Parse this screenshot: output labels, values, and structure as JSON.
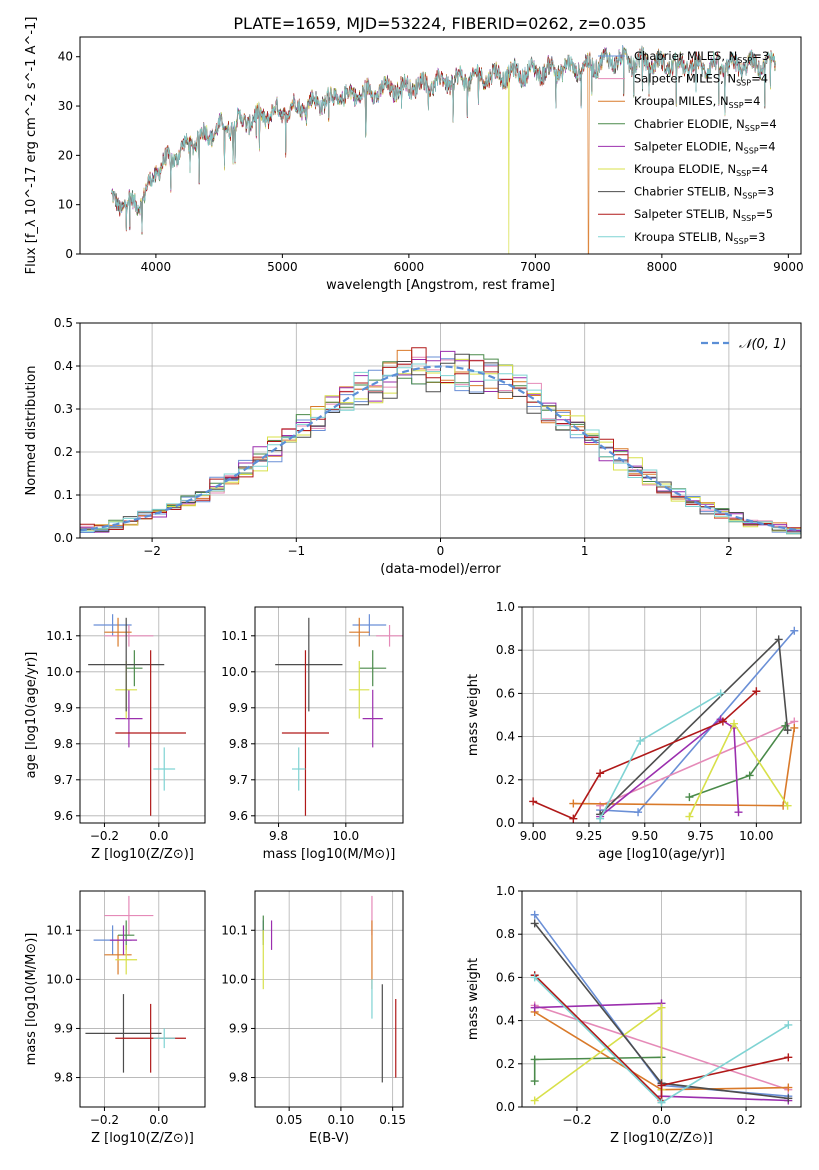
{
  "figure_title": "PLATE=1659, MJD=53224, FIBERID=0262, z=0.035",
  "colors": {
    "Chabrier MILES": "#6a8fd6",
    "Salpeter MILES": "#e58ab8",
    "Kroupa MILES": "#d97a2a",
    "Chabrier ELODIE": "#4a8a4a",
    "Salpeter ELODIE": "#9b2fae",
    "Kroupa ELODIE": "#d8e04a",
    "Chabrier STELIB": "#4d4d4d",
    "Salpeter STELIB": "#b01919",
    "Kroupa STELIB": "#7fd3d3",
    "normal": "#5b8fd6"
  },
  "chart_data": [
    {
      "id": "spectrum",
      "type": "line",
      "xlabel": "wavelength [Angstrom, rest frame]",
      "ylabel": "Flux [f_λ 10^-17 erg cm^-2 s^-1 A^-1]",
      "xlim": [
        3400,
        9100
      ],
      "ylim": [
        0,
        44
      ],
      "xticks": [
        4000,
        5000,
        6000,
        7000,
        8000,
        9000
      ],
      "yticks": [
        0,
        10,
        20,
        30,
        40
      ],
      "grid": false,
      "legend_position": "right",
      "legend": [
        {
          "model": "Chabrier MILES",
          "nssp": "3"
        },
        {
          "model": "Salpeter MILES",
          "nssp": "4"
        },
        {
          "model": "Kroupa MILES",
          "nssp": "4"
        },
        {
          "model": "Chabrier ELODIE",
          "nssp": "4"
        },
        {
          "model": "Salpeter ELODIE",
          "nssp": "4"
        },
        {
          "model": "Kroupa ELODIE",
          "nssp": "4"
        },
        {
          "model": "Chabrier STELIB",
          "nssp": "3"
        },
        {
          "model": "Salpeter STELIB",
          "nssp": "5"
        },
        {
          "model": "Kroupa STELIB",
          "nssp": "3"
        }
      ],
      "continuum": {
        "x": [
          3650,
          3750,
          3900,
          4000,
          4100,
          4300,
          4500,
          4700,
          5000,
          5300,
          5600,
          6000,
          6300,
          6600,
          7000,
          7400,
          7600,
          8000,
          8500,
          8900
        ],
        "y": [
          11,
          10,
          11,
          17,
          19,
          23,
          25.5,
          27,
          29,
          31,
          32.5,
          34,
          35,
          36,
          37,
          38,
          39.5,
          38.5,
          38,
          38.5
        ]
      },
      "dropouts": [
        {
          "model": "Kroupa MILES",
          "wavelength": 7420
        },
        {
          "model": "Kroupa ELODIE",
          "wavelength": 6790
        }
      ]
    },
    {
      "id": "residuals",
      "type": "line",
      "xlabel": "(data-model)/error",
      "ylabel": "Normed distribution",
      "xlim": [
        -2.5,
        2.5
      ],
      "ylim": [
        0,
        0.5
      ],
      "xticks": [
        -2,
        -1,
        0,
        1,
        2
      ],
      "yticks": [
        0.0,
        0.1,
        0.2,
        0.3,
        0.4,
        0.5
      ],
      "grid": true,
      "legend_position": "top-right",
      "series": [
        {
          "name": "N(0,1)",
          "label_script": "𝒩(0, 1)",
          "mean": 0,
          "std": 1
        }
      ],
      "histogram": {
        "bin_width": 0.1,
        "range": [
          -2.5,
          2.5
        ]
      }
    },
    {
      "id": "age-vs-z",
      "type": "scatter",
      "xlabel": "Z [log10(Z/Z⊙)]",
      "ylabel": "age [log10(age/yr)]",
      "xlim": [
        -0.29,
        0.17
      ],
      "ylim": [
        9.58,
        10.18
      ],
      "xticks": [
        -0.2,
        0.0
      ],
      "yticks": [
        9.6,
        9.7,
        9.8,
        9.9,
        10.0,
        10.1
      ],
      "grid": true,
      "points": [
        {
          "model": "Chabrier MILES",
          "x": -0.17,
          "xerr": 0.07,
          "y": 10.13,
          "yerr": 0.03
        },
        {
          "model": "Salpeter MILES",
          "x": -0.11,
          "xerr": 0.09,
          "y": 10.1,
          "yerr": 0.03
        },
        {
          "model": "Kroupa MILES",
          "x": -0.15,
          "xerr": 0.05,
          "y": 10.11,
          "yerr": 0.04
        },
        {
          "model": "Chabrier ELODIE",
          "x": -0.09,
          "xerr": 0.03,
          "y": 10.01,
          "yerr": 0.05
        },
        {
          "model": "Salpeter ELODIE",
          "x": -0.11,
          "xerr": 0.05,
          "y": 9.87,
          "yerr": 0.08
        },
        {
          "model": "Kroupa ELODIE",
          "x": -0.12,
          "xerr": 0.04,
          "y": 9.95,
          "yerr": 0.08
        },
        {
          "model": "Chabrier STELIB",
          "x": -0.12,
          "xerr": 0.14,
          "y": 10.02,
          "yerr": 0.13
        },
        {
          "model": "Salpeter STELIB",
          "x": -0.03,
          "xerr": 0.13,
          "y": 9.83,
          "yerr": 0.23
        },
        {
          "model": "Kroupa STELIB",
          "x": 0.02,
          "xerr": 0.04,
          "y": 9.73,
          "yerr": 0.06
        }
      ]
    },
    {
      "id": "age-vs-mass",
      "type": "scatter",
      "xlabel": "mass [log10(M/M⊙)]",
      "ylabel": "",
      "xlim": [
        9.73,
        10.17
      ],
      "ylim": [
        9.58,
        10.18
      ],
      "xticks": [
        9.8,
        10.0
      ],
      "yticks": [
        9.6,
        9.7,
        9.8,
        9.9,
        10.0,
        10.1
      ],
      "grid": true,
      "points": [
        {
          "model": "Chabrier MILES",
          "x": 10.07,
          "xerr": 0.05,
          "y": 10.13,
          "yerr": 0.03
        },
        {
          "model": "Salpeter MILES",
          "x": 10.13,
          "xerr": 0.04,
          "y": 10.1,
          "yerr": 0.03
        },
        {
          "model": "Kroupa MILES",
          "x": 10.04,
          "xerr": 0.03,
          "y": 10.11,
          "yerr": 0.04
        },
        {
          "model": "Chabrier ELODIE",
          "x": 10.08,
          "xerr": 0.04,
          "y": 10.01,
          "yerr": 0.05
        },
        {
          "model": "Salpeter ELODIE",
          "x": 10.08,
          "xerr": 0.03,
          "y": 9.87,
          "yerr": 0.08
        },
        {
          "model": "Kroupa ELODIE",
          "x": 10.04,
          "xerr": 0.03,
          "y": 9.95,
          "yerr": 0.08
        },
        {
          "model": "Chabrier STELIB",
          "x": 9.89,
          "xerr": 0.1,
          "y": 10.02,
          "yerr": 0.13
        },
        {
          "model": "Salpeter STELIB",
          "x": 9.88,
          "xerr": 0.07,
          "y": 9.83,
          "yerr": 0.23
        },
        {
          "model": "Kroupa STELIB",
          "x": 9.86,
          "xerr": 0.02,
          "y": 9.73,
          "yerr": 0.06
        }
      ]
    },
    {
      "id": "weight-vs-age",
      "type": "line",
      "xlabel": "age [log10(age/yr)]",
      "ylabel": "mass weight",
      "xlim": [
        8.95,
        10.2
      ],
      "ylim": [
        0.0,
        1.0
      ],
      "xticks": [
        9.0,
        9.25,
        9.5,
        9.75,
        10.0
      ],
      "yticks": [
        0.0,
        0.2,
        0.4,
        0.6,
        0.8,
        1.0
      ],
      "grid": true,
      "series": [
        {
          "model": "Chabrier MILES",
          "x": [
            9.3,
            9.47,
            10.17
          ],
          "y": [
            0.06,
            0.05,
            0.89
          ]
        },
        {
          "model": "Salpeter MILES",
          "x": [
            9.3,
            10.17
          ],
          "y": [
            0.08,
            0.47
          ]
        },
        {
          "model": "Kroupa MILES",
          "x": [
            9.18,
            10.12,
            10.17
          ],
          "y": [
            0.09,
            0.08,
            0.44
          ]
        },
        {
          "model": "Chabrier ELODIE",
          "x": [
            9.7,
            9.97,
            10.13
          ],
          "y": [
            0.12,
            0.22,
            0.45
          ]
        },
        {
          "model": "Salpeter ELODIE",
          "x": [
            9.3,
            9.84,
            9.9,
            9.92
          ],
          "y": [
            0.03,
            0.48,
            0.44,
            0.05
          ]
        },
        {
          "model": "Kroupa ELODIE",
          "x": [
            9.7,
            9.9,
            10.14
          ],
          "y": [
            0.03,
            0.46,
            0.08
          ]
        },
        {
          "model": "Chabrier STELIB",
          "x": [
            9.3,
            10.1,
            10.14
          ],
          "y": [
            0.04,
            0.85,
            0.43
          ]
        },
        {
          "model": "Salpeter STELIB",
          "x": [
            9.0,
            9.18,
            9.3,
            9.85,
            10.0
          ],
          "y": [
            0.1,
            0.02,
            0.23,
            0.47,
            0.61
          ]
        },
        {
          "model": "Kroupa STELIB",
          "x": [
            9.3,
            9.48,
            9.84
          ],
          "y": [
            0.02,
            0.38,
            0.6
          ]
        }
      ]
    },
    {
      "id": "mass-vs-z",
      "type": "scatter",
      "xlabel": "Z [log10(Z/Z⊙)]",
      "ylabel": "mass [log10(M/M⊙)]",
      "xlim": [
        -0.29,
        0.17
      ],
      "ylim": [
        9.74,
        10.18
      ],
      "xticks": [
        -0.2,
        0.0
      ],
      "yticks": [
        9.8,
        9.9,
        10.0,
        10.1
      ],
      "grid": true,
      "points": [
        {
          "model": "Chabrier MILES",
          "x": -0.17,
          "xerr": 0.07,
          "y": 10.08,
          "yerr": 0.03
        },
        {
          "model": "Salpeter MILES",
          "x": -0.11,
          "xerr": 0.09,
          "y": 10.13,
          "yerr": 0.04
        },
        {
          "model": "Kroupa MILES",
          "x": -0.15,
          "xerr": 0.05,
          "y": 10.05,
          "yerr": 0.04
        },
        {
          "model": "Chabrier ELODIE",
          "x": -0.12,
          "xerr": 0.03,
          "y": 10.09,
          "yerr": 0.03
        },
        {
          "model": "Salpeter ELODIE",
          "x": -0.13,
          "xerr": 0.05,
          "y": 10.08,
          "yerr": 0.03
        },
        {
          "model": "Kroupa ELODIE",
          "x": -0.12,
          "xerr": 0.04,
          "y": 10.04,
          "yerr": 0.03
        },
        {
          "model": "Chabrier STELIB",
          "x": -0.13,
          "xerr": 0.14,
          "y": 9.89,
          "yerr": 0.08
        },
        {
          "model": "Salpeter STELIB",
          "x": -0.03,
          "xerr": 0.13,
          "y": 9.88,
          "yerr": 0.07
        },
        {
          "model": "Kroupa STELIB",
          "x": 0.02,
          "xerr": 0.04,
          "y": 9.88,
          "yerr": 0.02
        }
      ]
    },
    {
      "id": "mass-vs-ebv",
      "type": "scatter",
      "xlabel": "E(B-V)",
      "ylabel": "",
      "xlim": [
        0.017,
        0.16
      ],
      "ylim": [
        9.74,
        10.18
      ],
      "xticks": [
        0.05,
        0.1,
        0.15
      ],
      "yticks": [
        9.8,
        9.9,
        10.0,
        10.1
      ],
      "grid": true,
      "points": [
        {
          "model": "Chabrier MILES",
          "x": 0.025,
          "xerr": 0.0,
          "y": 10.1,
          "yerr": 0.02
        },
        {
          "model": "Salpeter MILES",
          "x": 0.13,
          "xerr": 0.0,
          "y": 10.13,
          "yerr": 0.04
        },
        {
          "model": "Kroupa MILES",
          "x": 0.13,
          "xerr": 0.0,
          "y": 10.05,
          "yerr": 0.07
        },
        {
          "model": "Chabrier ELODIE",
          "x": 0.025,
          "xerr": 0.0,
          "y": 10.1,
          "yerr": 0.03
        },
        {
          "model": "Salpeter ELODIE",
          "x": 0.033,
          "xerr": 0.0,
          "y": 10.09,
          "yerr": 0.03
        },
        {
          "model": "Kroupa ELODIE",
          "x": 0.025,
          "xerr": 0.0,
          "y": 10.04,
          "yerr": 0.06
        },
        {
          "model": "Chabrier STELIB",
          "x": 0.14,
          "xerr": 0.0,
          "y": 9.89,
          "yerr": 0.1
        },
        {
          "model": "Salpeter STELIB",
          "x": 0.153,
          "xerr": 0.0,
          "y": 9.88,
          "yerr": 0.08
        },
        {
          "model": "Kroupa STELIB",
          "x": 0.13,
          "xerr": 0.0,
          "y": 9.96,
          "yerr": 0.04
        }
      ]
    },
    {
      "id": "weight-vs-z",
      "type": "line",
      "xlabel": "Z [log10(Z/Z⊙)]",
      "ylabel": "mass weight",
      "xlim": [
        -0.33,
        0.33
      ],
      "ylim": [
        0.0,
        1.0
      ],
      "xticks": [
        -0.2,
        0.0,
        0.2
      ],
      "yticks": [
        0.0,
        0.2,
        0.4,
        0.6,
        0.8,
        1.0
      ],
      "grid": true,
      "series": [
        {
          "model": "Chabrier MILES",
          "x": [
            -0.3,
            0.0,
            0.3
          ],
          "y": [
            0.89,
            0.1,
            0.05
          ]
        },
        {
          "model": "Salpeter MILES",
          "x": [
            -0.3,
            0.3
          ],
          "y": [
            0.47,
            0.08
          ]
        },
        {
          "model": "Kroupa MILES",
          "x": [
            -0.3,
            0.0,
            0.3
          ],
          "y": [
            0.44,
            0.08,
            0.09
          ]
        },
        {
          "model": "Chabrier ELODIE",
          "x": [
            -0.3,
            -0.3,
            0.0
          ],
          "y": [
            0.12,
            0.22,
            0.23
          ]
        },
        {
          "model": "Salpeter ELODIE",
          "x": [
            -0.3,
            0.0,
            0.0,
            0.3
          ],
          "y": [
            0.46,
            0.48,
            0.05,
            0.03
          ]
        },
        {
          "model": "Kroupa ELODIE",
          "x": [
            -0.3,
            0.0,
            0.0
          ],
          "y": [
            0.03,
            0.46,
            0.08
          ]
        },
        {
          "model": "Chabrier STELIB",
          "x": [
            -0.3,
            0.0,
            0.3
          ],
          "y": [
            0.85,
            0.11,
            0.04
          ]
        },
        {
          "model": "Salpeter STELIB",
          "x": [
            -0.3,
            0.0,
            0.0,
            0.3
          ],
          "y": [
            0.61,
            0.03,
            0.1,
            0.23
          ]
        },
        {
          "model": "Kroupa STELIB",
          "x": [
            -0.3,
            0.0,
            0.3
          ],
          "y": [
            0.6,
            0.02,
            0.38
          ]
        }
      ]
    }
  ]
}
